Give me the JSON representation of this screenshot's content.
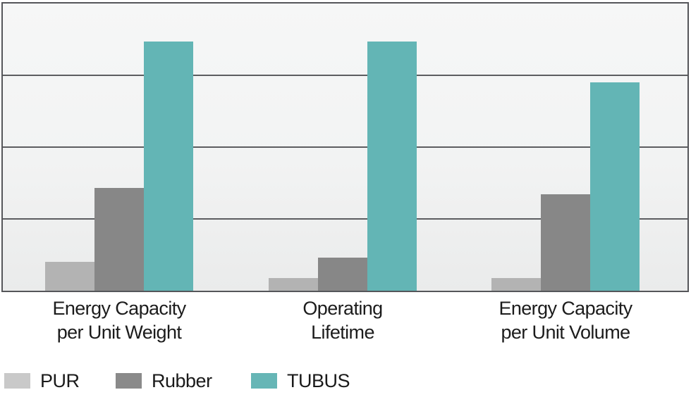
{
  "chart_data": {
    "type": "bar",
    "title": "",
    "xlabel": "",
    "ylabel": "",
    "ylim": [
      0,
      4
    ],
    "gridlines": [
      1,
      2,
      3
    ],
    "grid": "horizontal",
    "legend_position": "bottom-left",
    "categories": [
      {
        "line1": "Energy Capacity",
        "line2": "per Unit Weight"
      },
      {
        "line1": "Operating",
        "line2": "Lifetime"
      },
      {
        "line1": "Energy Capacity",
        "line2": "per Unit Volume"
      }
    ],
    "series": [
      {
        "name": "PUR",
        "color": "#b3b3b3",
        "legend_color": "#c9c9c9",
        "values": [
          0.4,
          0.18,
          0.18
        ]
      },
      {
        "name": "Rubber",
        "color": "#878787",
        "legend_color": "#8a8a8a",
        "values": [
          1.43,
          0.46,
          1.34
        ]
      },
      {
        "name": "TUBUS",
        "color": "#63b5b5",
        "legend_color": "#66b6b6",
        "values": [
          3.47,
          3.47,
          2.9
        ]
      }
    ],
    "layout": {
      "group_centers_frac": [
        0.17,
        0.4965,
        0.822
      ],
      "bar_width_frac": 0.0721,
      "plot_border_color": "#55565a",
      "gridline_color": "#5c5d60",
      "plot_bg_top": "#f6f7f7",
      "plot_bg_bottom": "#eaebeb"
    }
  }
}
